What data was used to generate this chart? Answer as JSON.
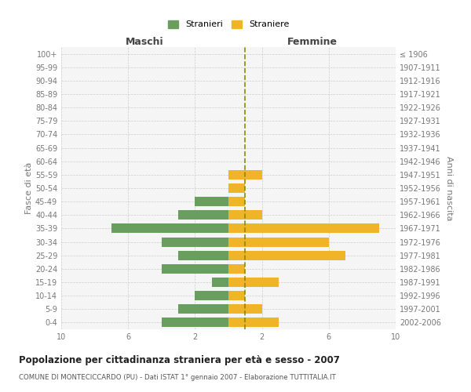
{
  "age_groups": [
    "100+",
    "95-99",
    "90-94",
    "85-89",
    "80-84",
    "75-79",
    "70-74",
    "65-69",
    "60-64",
    "55-59",
    "50-54",
    "45-49",
    "40-44",
    "35-39",
    "30-34",
    "25-29",
    "20-24",
    "15-19",
    "10-14",
    "5-9",
    "0-4"
  ],
  "birth_years": [
    "≤ 1906",
    "1907-1911",
    "1912-1916",
    "1917-1921",
    "1922-1926",
    "1927-1931",
    "1932-1936",
    "1937-1941",
    "1942-1946",
    "1947-1951",
    "1952-1956",
    "1957-1961",
    "1962-1966",
    "1967-1971",
    "1972-1976",
    "1977-1981",
    "1982-1986",
    "1987-1991",
    "1992-1996",
    "1997-2001",
    "2002-2006"
  ],
  "maschi": [
    0,
    0,
    0,
    0,
    0,
    0,
    0,
    0,
    0,
    0,
    0,
    2,
    3,
    7,
    4,
    3,
    4,
    1,
    2,
    3,
    4
  ],
  "femmine": [
    0,
    0,
    0,
    0,
    0,
    0,
    0,
    0,
    0,
    2,
    1,
    1,
    2,
    9,
    6,
    7,
    1,
    3,
    1,
    2,
    3
  ],
  "color_maschi": "#6a9e5e",
  "color_femmine": "#f0b429",
  "background_color": "#f5f5f5",
  "grid_color": "#cccccc",
  "title": "Popolazione per cittadinanza straniera per età e sesso - 2007",
  "subtitle": "COMUNE DI MONTECICCARDO (PU) - Dati ISTAT 1° gennaio 2007 - Elaborazione TUTTITALIA.IT",
  "ylabel_left": "Fasce di età",
  "ylabel_right": "Anni di nascita",
  "xlabel_left": "Maschi",
  "xlabel_right": "Femmine",
  "legend_maschi": "Stranieri",
  "legend_femmine": "Straniere",
  "xlim": 10,
  "bar_height": 0.7,
  "dashed_line_color": "#8b8b00",
  "text_color": "#777777"
}
